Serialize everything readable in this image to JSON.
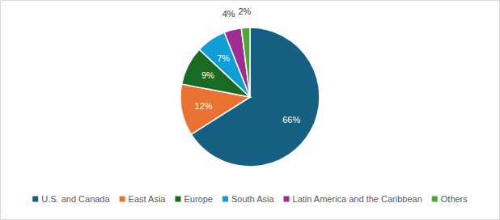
{
  "chart_data": {
    "type": "pie",
    "categories": [
      "U.S. and Canada",
      "East Asia",
      "Europe",
      "South Asia",
      "Latin America and the Caribbean",
      "Others"
    ],
    "values": [
      66,
      12,
      9,
      7,
      4,
      2
    ],
    "value_labels": [
      "66%",
      "12%",
      "9%",
      "7%",
      "4%",
      "2%"
    ],
    "colors": [
      "#156082",
      "#e97132",
      "#196b24",
      "#0f9ed5",
      "#a02b93",
      "#4ea72e"
    ],
    "data_labels": true,
    "legend": "bottom"
  }
}
